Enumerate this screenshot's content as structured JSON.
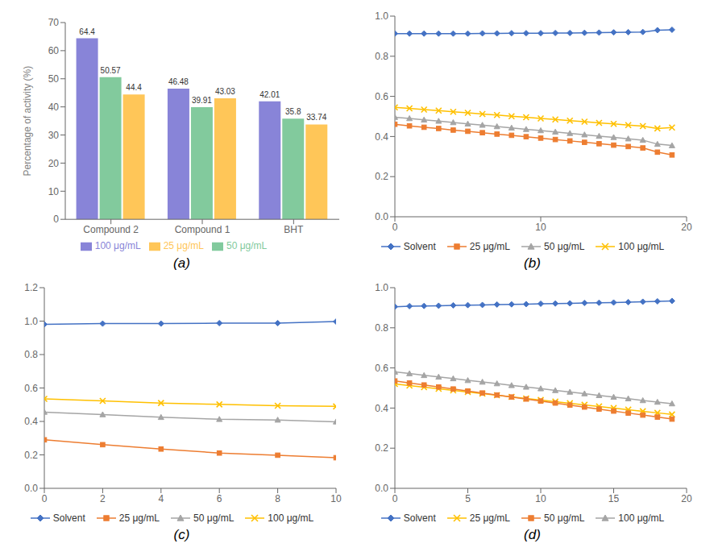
{
  "chart_data": [
    {
      "type": "bar",
      "title": "(a)",
      "categories": [
        "Compound 2",
        "Compound 1",
        "BHT"
      ],
      "series": [
        {
          "name": "100 μg/mL",
          "color": "#8884d8",
          "values": [
            64.4,
            46.48,
            42.01
          ]
        },
        {
          "name": "50 μg/mL",
          "color": "#82ca9d",
          "values": [
            50.57,
            39.91,
            35.8
          ]
        },
        {
          "name": "25 μg/mL",
          "color": "#ffc658",
          "values": [
            44.4,
            43.03,
            33.74
          ]
        }
      ],
      "ylabel": "Percentage of activity (%)",
      "ylim": [
        0,
        70
      ],
      "yticks": [
        0,
        10,
        20,
        30,
        40,
        50,
        60,
        70
      ],
      "data_labels": true,
      "legend": "bottom",
      "grid": false
    },
    {
      "type": "line",
      "title": "(b)",
      "x": [
        0,
        1,
        2,
        3,
        4,
        5,
        6,
        7,
        8,
        9,
        10,
        11,
        12,
        13,
        14,
        15,
        16,
        17,
        18,
        19
      ],
      "series": [
        {
          "name": "Solvent",
          "color": "#4472C4",
          "marker": "diamond",
          "values": [
            0.913,
            0.913,
            0.913,
            0.913,
            0.913,
            0.913,
            0.914,
            0.914,
            0.915,
            0.915,
            0.915,
            0.916,
            0.916,
            0.917,
            0.918,
            0.919,
            0.92,
            0.921,
            0.93,
            0.932
          ]
        },
        {
          "name": "25 μg/mL",
          "color": "#ED7D31",
          "marker": "square",
          "values": [
            0.461,
            0.453,
            0.446,
            0.44,
            0.432,
            0.426,
            0.419,
            0.412,
            0.406,
            0.399,
            0.392,
            0.385,
            0.378,
            0.371,
            0.364,
            0.357,
            0.35,
            0.343,
            0.322,
            0.308
          ]
        },
        {
          "name": "50 μg/mL",
          "color": "#A5A5A5",
          "marker": "triangle",
          "values": [
            0.496,
            0.49,
            0.483,
            0.477,
            0.47,
            0.463,
            0.457,
            0.45,
            0.443,
            0.436,
            0.43,
            0.423,
            0.416,
            0.409,
            0.402,
            0.396,
            0.389,
            0.382,
            0.362,
            0.355
          ]
        },
        {
          "name": "100 μg/mL",
          "color": "#FFC000",
          "marker": "x",
          "values": [
            0.545,
            0.54,
            0.534,
            0.529,
            0.523,
            0.518,
            0.512,
            0.507,
            0.501,
            0.496,
            0.49,
            0.485,
            0.479,
            0.474,
            0.468,
            0.463,
            0.457,
            0.452,
            0.44,
            0.445
          ]
        }
      ],
      "xlim": [
        0,
        20
      ],
      "xticks": [
        0,
        10,
        20
      ],
      "ylim": [
        0,
        1.0
      ],
      "yticks": [
        {
          "value": 0,
          "label": "0.0"
        },
        0.2,
        0.4,
        0.6,
        0.8,
        {
          "value": 1.0,
          "label": "1.0"
        }
      ],
      "legend": "bottom",
      "grid": false
    },
    {
      "type": "line",
      "title": "(c)",
      "x": [
        0,
        2,
        4,
        6,
        8,
        10
      ],
      "series": [
        {
          "name": "Solvent",
          "color": "#4472C4",
          "marker": "diamond",
          "values": [
            0.981,
            0.985,
            0.985,
            0.988,
            0.988,
            0.997
          ]
        },
        {
          "name": "25 μg/mL",
          "color": "#ED7D31",
          "marker": "square",
          "values": [
            0.29,
            0.261,
            0.235,
            0.211,
            0.198,
            0.183
          ]
        },
        {
          "name": "50 μg/mL",
          "color": "#A5A5A5",
          "marker": "triangle",
          "values": [
            0.456,
            0.441,
            0.425,
            0.413,
            0.409,
            0.398
          ]
        },
        {
          "name": "100 μg/mL",
          "color": "#FFC000",
          "marker": "x",
          "values": [
            0.535,
            0.523,
            0.51,
            0.502,
            0.494,
            0.49
          ]
        }
      ],
      "xlim": [
        0,
        10
      ],
      "xticks": [
        0,
        2,
        4,
        6,
        8,
        10
      ],
      "ylim": [
        0,
        1.2
      ],
      "yticks": [
        {
          "value": 0,
          "label": "0.0"
        },
        0.2,
        0.4,
        0.6,
        0.8,
        {
          "value": 1.0,
          "label": "1.0"
        },
        1.2
      ],
      "legend": "bottom",
      "grid": false
    },
    {
      "type": "line",
      "title": "(d)",
      "x": [
        0,
        1,
        2,
        3,
        4,
        5,
        6,
        7,
        8,
        9,
        10,
        11,
        12,
        13,
        14,
        15,
        16,
        17,
        18,
        19
      ],
      "series": [
        {
          "name": "Solvent",
          "color": "#4472C4",
          "marker": "diamond",
          "values": [
            0.905,
            0.908,
            0.909,
            0.91,
            0.912,
            0.913,
            0.914,
            0.916,
            0.917,
            0.918,
            0.92,
            0.921,
            0.922,
            0.924,
            0.925,
            0.926,
            0.928,
            0.93,
            0.932,
            0.934
          ]
        },
        {
          "name": "25 μg/mL",
          "color": "#FFC000",
          "marker": "x",
          "values": [
            0.52,
            0.512,
            0.504,
            0.496,
            0.488,
            0.48,
            0.472,
            0.464,
            0.456,
            0.448,
            0.44,
            0.432,
            0.424,
            0.416,
            0.408,
            0.4,
            0.392,
            0.384,
            0.376,
            0.368
          ]
        },
        {
          "name": "50 μg/mL",
          "color": "#ED7D31",
          "marker": "square",
          "values": [
            0.535,
            0.525,
            0.515,
            0.505,
            0.495,
            0.485,
            0.475,
            0.465,
            0.455,
            0.445,
            0.435,
            0.425,
            0.415,
            0.405,
            0.395,
            0.385,
            0.375,
            0.365,
            0.355,
            0.345
          ]
        },
        {
          "name": "100 μg/mL",
          "color": "#A5A5A5",
          "marker": "triangle",
          "values": [
            0.58,
            0.572,
            0.563,
            0.555,
            0.547,
            0.538,
            0.53,
            0.522,
            0.513,
            0.505,
            0.497,
            0.488,
            0.48,
            0.472,
            0.463,
            0.455,
            0.447,
            0.438,
            0.43,
            0.422
          ]
        }
      ],
      "xlim": [
        0,
        20
      ],
      "xticks": [
        0,
        5,
        10,
        15,
        20
      ],
      "ylim": [
        0,
        1.0
      ],
      "yticks": [
        {
          "value": 0,
          "label": "0.0"
        },
        0.2,
        0.4,
        0.6,
        0.8,
        {
          "value": 1.0,
          "label": "1.0"
        }
      ],
      "legend": "bottom",
      "grid": false
    }
  ]
}
